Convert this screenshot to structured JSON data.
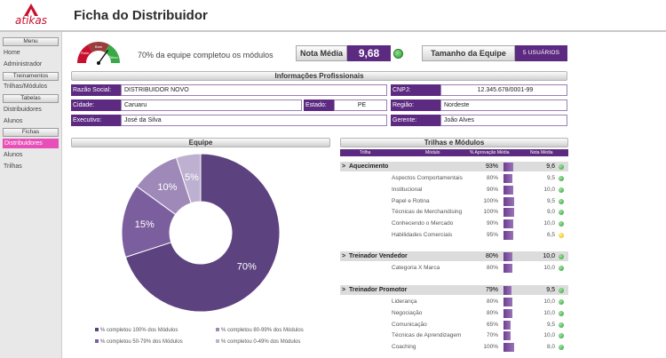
{
  "brand": {
    "logo_text": "atikas",
    "accent": "#c8102e",
    "primary": "#5d2a81"
  },
  "page_title": "Ficha do Distribuidor",
  "sidebar": {
    "menu_header": "Menu",
    "menu_items": [
      "Home",
      "Administrador"
    ],
    "treinamentos_header": "Treinamentos",
    "treinamentos_items": [
      "Trilhas/Módulos"
    ],
    "tabelas_header": "Tabelas",
    "tabelas_items": [
      "Distribuidores",
      "Alunos"
    ],
    "fichas_header": "Fichas",
    "fichas_active": "Distribuidores",
    "fichas_items": [
      "Alunos",
      "Trilhas"
    ]
  },
  "gauge": {
    "ruim": "Ruim",
    "bom": "Bom",
    "otimo": "Ótimo",
    "level_percent": 70
  },
  "team_message": "70% da equipe completou os módulos",
  "nota_media": {
    "label": "Nota Média",
    "value": "9,68",
    "status": "green"
  },
  "tamanho_equipe": {
    "label": "Tamanho da Equipe",
    "value": "5 USUÁRIOS"
  },
  "info_section": {
    "title": "Informações Profissionais",
    "razao_social_label": "Razão Social:",
    "razao_social": "DISTRIBUIDOR NOVO",
    "cnpj_label": "CNPJ:",
    "cnpj": "12.345.678/0001-99",
    "cidade_label": "Cidade:",
    "cidade": "Caruaru",
    "estado_label": "Estado:",
    "estado": "PE",
    "regiao_label": "Região:",
    "regiao": "Nordeste",
    "executivo_label": "Executivo:",
    "executivo": "José da Silva",
    "gerente_label": "Gerente:",
    "gerente": "João Alves"
  },
  "equipe_title": "Equipe",
  "trilhas_title": "Trilhas e Módulos",
  "chart_data": {
    "type": "pie",
    "series": [
      {
        "name": "% completou 100% dos Módulos",
        "value": 70,
        "label": "70%",
        "color": "#5d4280"
      },
      {
        "name": "% completou 50-79% dos Módulos",
        "value": 15,
        "label": "15%",
        "color": "#7b5e9e"
      },
      {
        "name": "% completou 80-99% dos Módulos",
        "value": 10,
        "label": "10%",
        "color": "#9e89b8"
      },
      {
        "name": "% completou 0-49% dos Módulos",
        "value": 5,
        "label": "5%",
        "color": "#bdb0d0"
      }
    ]
  },
  "table": {
    "headers": {
      "trilha": "Trilha",
      "modulo": "Módulo",
      "aprov": "% Aprovação Média",
      "nota": "Nota Média"
    },
    "groups": [
      {
        "name": "Aquecimento",
        "aprov": "93%",
        "aprov_value": 93,
        "nota": "9,6",
        "status": "green",
        "modules": [
          {
            "name": "Aspectos Comportamentais",
            "aprov": "80%",
            "aprov_value": 80,
            "nota": "9,5",
            "status": "green"
          },
          {
            "name": "Institucional",
            "aprov": "90%",
            "aprov_value": 90,
            "nota": "10,0",
            "status": "green"
          },
          {
            "name": "Papel e Rotina",
            "aprov": "100%",
            "aprov_value": 100,
            "nota": "9,5",
            "status": "green"
          },
          {
            "name": "Técnicas de Merchandising",
            "aprov": "100%",
            "aprov_value": 100,
            "nota": "9,0",
            "status": "green"
          },
          {
            "name": "Conhecendo o Mercado",
            "aprov": "90%",
            "aprov_value": 90,
            "nota": "10,0",
            "status": "green"
          },
          {
            "name": "Habilidades Comerciais",
            "aprov": "95%",
            "aprov_value": 95,
            "nota": "6,5",
            "status": "yellow"
          }
        ]
      },
      {
        "name": "Treinador Vendedor",
        "aprov": "80%",
        "aprov_value": 80,
        "nota": "10,0",
        "status": "green",
        "modules": [
          {
            "name": "Categoria X Marca",
            "aprov": "80%",
            "aprov_value": 80,
            "nota": "10,0",
            "status": "green"
          }
        ]
      },
      {
        "name": "Treinador Promotor",
        "aprov": "79%",
        "aprov_value": 79,
        "nota": "9,5",
        "status": "green",
        "modules": [
          {
            "name": "Liderança",
            "aprov": "80%",
            "aprov_value": 80,
            "nota": "10,0",
            "status": "green"
          },
          {
            "name": "Negociação",
            "aprov": "80%",
            "aprov_value": 80,
            "nota": "10,0",
            "status": "green"
          },
          {
            "name": "Comunicação",
            "aprov": "65%",
            "aprov_value": 65,
            "nota": "9,5",
            "status": "green"
          },
          {
            "name": "Técnicas de Aprendizagem",
            "aprov": "70%",
            "aprov_value": 70,
            "nota": "10,0",
            "status": "green"
          },
          {
            "name": "Coaching",
            "aprov": "100%",
            "aprov_value": 100,
            "nota": "8,0",
            "status": "green"
          }
        ]
      }
    ]
  }
}
